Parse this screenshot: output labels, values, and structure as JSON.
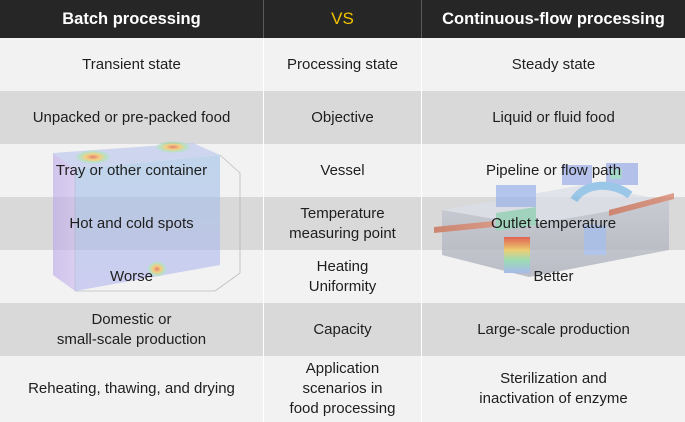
{
  "header": {
    "left_title": "Batch processing",
    "middle_title": "VS",
    "right_title": "Continuous-flow processing"
  },
  "rows": [
    {
      "left": "Transient state",
      "middle": "Processing state",
      "right": "Steady state"
    },
    {
      "left": "Unpacked or pre-packed food",
      "middle": "Objective",
      "right": "Liquid or fluid food"
    },
    {
      "left": "Tray or other container",
      "middle": "Vessel",
      "right": "Pipeline or flow path"
    },
    {
      "left": "Hot and cold spots",
      "middle": "Temperature\nmeasuring point",
      "right": "Outlet temperature"
    },
    {
      "left": "Worse",
      "middle": "Heating\nUniformity",
      "right": "Better"
    },
    {
      "left": "Domestic or\nsmall-scale production",
      "middle": "Capacity",
      "right": "Large-scale production"
    },
    {
      "left": "Reheating, thawing, and drying",
      "middle": "Application\nscenarios in\nfood processing",
      "right": "Sterilization and\ninactivation of enzyme"
    }
  ],
  "colors": {
    "header_bg": "#262626",
    "header_text": "#ffffff",
    "vs_accent": "#f2c200",
    "row_light": "#f2f2f2",
    "row_dark": "#d9d9d9"
  },
  "illustrations": {
    "left": "batch-tray-heatmap-illustration",
    "right": "continuous-flow-pipeline-heatmap-illustration"
  }
}
